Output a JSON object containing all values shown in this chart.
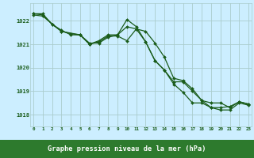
{
  "line1_x": [
    0,
    1,
    2,
    3,
    4,
    5,
    6,
    7,
    8,
    9,
    10,
    11,
    12,
    13,
    14,
    15,
    16,
    17,
    18,
    19,
    20,
    21,
    22,
    23
  ],
  "line1_y": [
    1022.3,
    1022.3,
    1021.85,
    1021.6,
    1021.4,
    1021.4,
    1021.0,
    1021.1,
    1021.35,
    1021.35,
    1021.15,
    1021.65,
    1021.55,
    1021.05,
    1020.45,
    1019.55,
    1019.45,
    1019.1,
    1018.6,
    1018.3,
    1018.3,
    1018.35,
    1018.55,
    1018.45
  ],
  "line2_x": [
    0,
    1,
    2,
    3,
    4,
    5,
    6,
    7,
    8,
    9,
    10,
    11,
    12,
    13,
    14,
    15,
    16,
    17,
    18,
    19,
    20,
    21,
    22,
    23
  ],
  "line2_y": [
    1022.3,
    1022.25,
    1021.85,
    1021.55,
    1021.45,
    1021.4,
    1021.0,
    1021.15,
    1021.4,
    1021.4,
    1021.75,
    1021.65,
    1021.1,
    1020.3,
    1019.9,
    1019.3,
    1018.95,
    1018.5,
    1018.5,
    1018.3,
    1018.2,
    1018.2,
    1018.5,
    1018.4
  ],
  "line3_x": [
    0,
    1,
    3,
    5,
    6,
    7,
    8,
    9,
    10,
    11,
    12,
    13,
    14,
    15,
    16,
    17,
    18,
    19,
    20,
    21,
    22,
    23
  ],
  "line3_y": [
    1022.25,
    1022.2,
    1021.55,
    1021.4,
    1021.05,
    1021.05,
    1021.3,
    1021.4,
    1022.05,
    1021.75,
    1021.1,
    1020.3,
    1019.9,
    1019.4,
    1019.4,
    1019.0,
    1018.6,
    1018.5,
    1018.5,
    1018.3,
    1018.55,
    1018.45
  ],
  "line_color": "#1a5c1a",
  "bg_color": "#cceeff",
  "grid_color": "#aacccc",
  "bottom_bar_color": "#2d7a2d",
  "xlabel": "Graphe pression niveau de la mer (hPa)",
  "ylim_min": 1017.5,
  "ylim_max": 1022.75,
  "yticks": [
    1018,
    1019,
    1020,
    1021,
    1022
  ],
  "xticks": [
    0,
    1,
    2,
    3,
    4,
    5,
    6,
    7,
    8,
    9,
    10,
    11,
    12,
    13,
    14,
    15,
    16,
    17,
    18,
    19,
    20,
    21,
    22,
    23
  ],
  "xtick_labels": [
    "0",
    "1",
    "2",
    "3",
    "4",
    "5",
    "6",
    "7",
    "8",
    "9",
    "10",
    "11",
    "12",
    "13",
    "14",
    "15",
    "16",
    "17",
    "18",
    "19",
    "20",
    "21",
    "22",
    "23"
  ]
}
